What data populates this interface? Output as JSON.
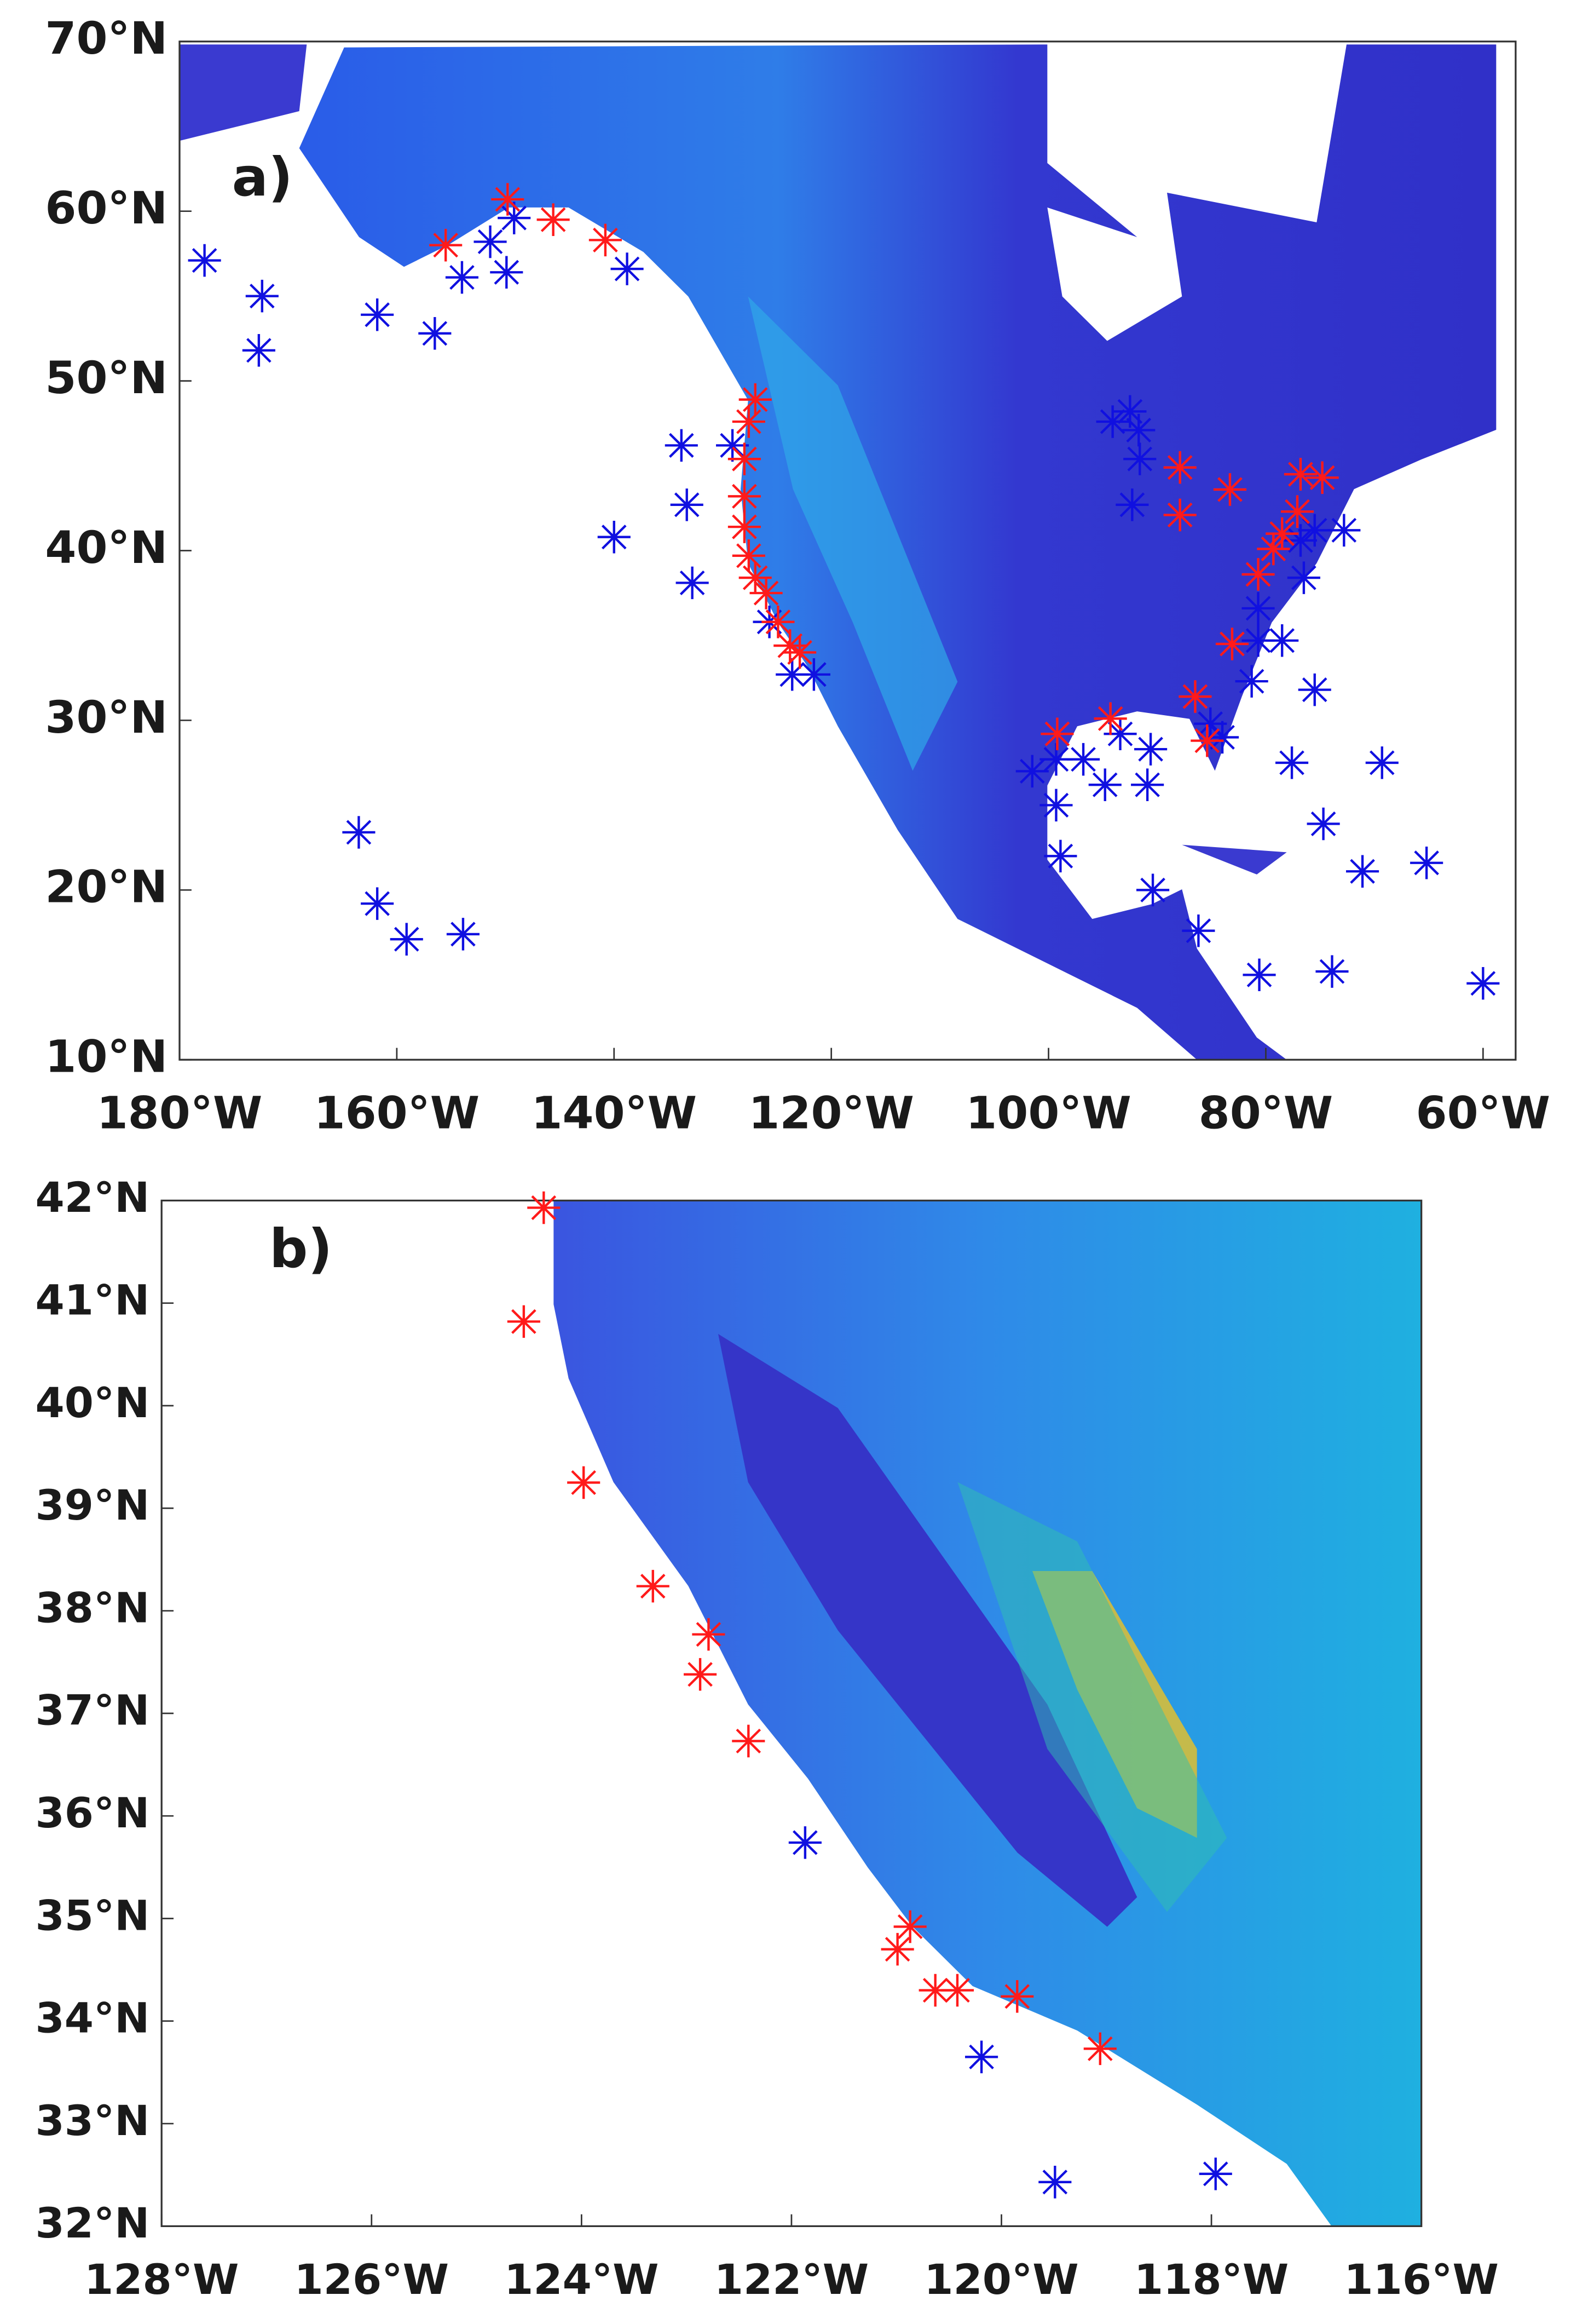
{
  "chart_data": [
    {
      "type": "scatter",
      "annotation": "a)",
      "xlim": [
        -180,
        -57
      ],
      "ylim": [
        10,
        70
      ],
      "xticks": [
        {
          "value": -180,
          "label": "180°W"
        },
        {
          "value": -160,
          "label": "160°W"
        },
        {
          "value": -140,
          "label": "140°W"
        },
        {
          "value": -120,
          "label": "120°W"
        },
        {
          "value": -100,
          "label": "100°W"
        },
        {
          "value": -80,
          "label": "80°W"
        },
        {
          "value": -60,
          "label": "60°W"
        }
      ],
      "yticks": [
        {
          "value": 10,
          "label": "10°N"
        },
        {
          "value": 20,
          "label": "20°N"
        },
        {
          "value": 30,
          "label": "30°N"
        },
        {
          "value": 40,
          "label": "40°N"
        },
        {
          "value": 50,
          "label": "50°N"
        },
        {
          "value": 60,
          "label": "60°N"
        },
        {
          "value": 70,
          "label": "70°N"
        }
      ],
      "series": [
        {
          "color": "#1010e0",
          "x": [
            -177.7,
            -172.4,
            -172.7,
            -161.8,
            -156.5,
            -154.0,
            -151.4,
            -149.9,
            -149.2,
            -138.8,
            -133.8,
            -133.3,
            -132.8,
            -140.0,
            -129.1,
            -125.7,
            -123.6,
            -121.6,
            -163.5,
            -161.8,
            -159.1,
            -153.9,
            -94.1,
            -92.5,
            -91.7,
            -91.6,
            -92.3,
            -76.8,
            -75.5,
            -72.8,
            -76.5,
            -80.7,
            -80.7,
            -78.5,
            -81.3,
            -75.5,
            -85.1,
            -84.0,
            -93.4,
            -90.6,
            -101.5,
            -99.3,
            -96.8,
            -99.3,
            -94.8,
            -90.9,
            -77.6,
            -69.3,
            -74.7,
            -71.1,
            -65.2,
            -98.9,
            -90.4,
            -86.2,
            -80.6,
            -73.9,
            -60.0
          ],
          "values": [
            57.1,
            55.0,
            51.8,
            53.9,
            52.8,
            56.1,
            58.2,
            56.4,
            59.6,
            56.6,
            46.2,
            42.7,
            38.1,
            40.8,
            46.2,
            35.8,
            32.7,
            32.7,
            23.4,
            19.2,
            17.1,
            17.4,
            47.6,
            48.2,
            47.1,
            45.4,
            42.7,
            40.6,
            41.2,
            41.2,
            38.4,
            36.6,
            34.7,
            34.7,
            32.3,
            31.8,
            29.8,
            29.0,
            29.2,
            28.3,
            27.0,
            27.7,
            27.7,
            25.0,
            26.2,
            26.2,
            27.5,
            27.5,
            23.9,
            21.1,
            21.6,
            22.0,
            20.0,
            17.6,
            15.0,
            15.2,
            14.5
          ]
        },
        {
          "color": "#ff1a1a",
          "x": [
            -155.5,
            -149.8,
            -145.6,
            -140.8,
            -127.0,
            -127.6,
            -128.0,
            -128.0,
            -128.0,
            -127.6,
            -127.0,
            -126.0,
            -124.9,
            -123.8,
            -122.9,
            -99.2,
            -94.3,
            -87.9,
            -87.9,
            -83.3,
            -76.8,
            -74.8,
            -77.1,
            -78.5,
            -79.3,
            -80.7,
            -83.1,
            -86.5,
            -85.4
          ],
          "values": [
            58.0,
            60.7,
            59.5,
            58.3,
            48.9,
            47.6,
            45.4,
            43.2,
            41.4,
            39.7,
            38.4,
            37.5,
            35.8,
            34.4,
            34.0,
            29.2,
            30.1,
            44.9,
            42.1,
            43.6,
            44.5,
            44.3,
            42.3,
            41.0,
            40.1,
            38.6,
            34.5,
            31.4,
            28.8
          ]
        }
      ]
    },
    {
      "type": "scatter",
      "annotation": "b)",
      "xlim": [
        -128,
        -116
      ],
      "ylim": [
        32,
        42
      ],
      "xticks": [
        {
          "value": -128,
          "label": "128°W"
        },
        {
          "value": -126,
          "label": "126°W"
        },
        {
          "value": -124,
          "label": "124°W"
        },
        {
          "value": -122,
          "label": "122°W"
        },
        {
          "value": -120,
          "label": "120°W"
        },
        {
          "value": -118,
          "label": "118°W"
        },
        {
          "value": -116,
          "label": "116°W"
        }
      ],
      "yticks": [
        {
          "value": 32,
          "label": "32°N"
        },
        {
          "value": 33,
          "label": "33°N"
        },
        {
          "value": 34,
          "label": "34°N"
        },
        {
          "value": 35,
          "label": "35°N"
        },
        {
          "value": 36,
          "label": "36°N"
        },
        {
          "value": 37,
          "label": "37°N"
        },
        {
          "value": 38,
          "label": "38°N"
        },
        {
          "value": 39,
          "label": "39°N"
        },
        {
          "value": 40,
          "label": "40°N"
        },
        {
          "value": 41,
          "label": "41°N"
        },
        {
          "value": 42,
          "label": "42°N"
        }
      ],
      "series": [
        {
          "color": "#ff1a1a",
          "x": [
            -124.36,
            -124.55,
            -123.98,
            -123.32,
            -122.79,
            -122.87,
            -122.41,
            -120.87,
            -120.99,
            -120.63,
            -120.42,
            -119.85,
            -119.06
          ],
          "values": [
            41.93,
            40.82,
            39.25,
            38.24,
            37.77,
            37.38,
            36.73,
            34.92,
            34.7,
            34.3,
            34.3,
            34.24,
            33.73
          ]
        },
        {
          "color": "#1010e0",
          "x": [
            -121.87,
            -120.19,
            -119.49,
            -117.96
          ],
          "values": [
            35.74,
            33.65,
            32.43,
            32.51
          ]
        }
      ]
    }
  ]
}
